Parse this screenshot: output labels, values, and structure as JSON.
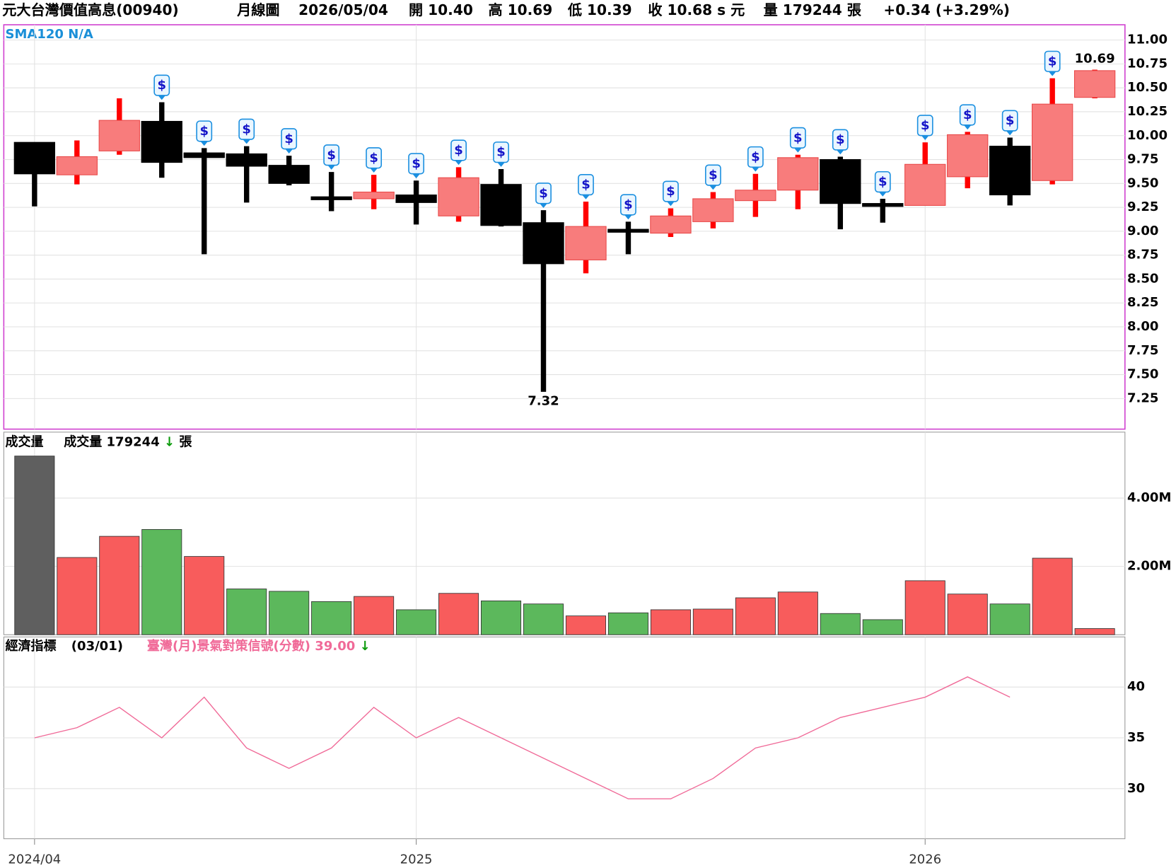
{
  "header": {
    "name": "元大台灣價值高息(00940)",
    "period": "月線圖",
    "date": "2026/05/04",
    "open": "開 10.40",
    "high": "高 10.69",
    "low": "低 10.39",
    "close": "收 10.68 s 元",
    "volume": "量 179244 張",
    "change": "+0.34 (+3.29%)"
  },
  "chart_data": [
    {
      "type": "candlestick",
      "indicator_label": "SMA120 N/A",
      "categories": [
        "2024/04",
        null,
        null,
        null,
        null,
        null,
        null,
        null,
        null,
        "2025",
        null,
        null,
        null,
        null,
        null,
        null,
        null,
        null,
        null,
        null,
        null,
        "2026",
        null,
        null,
        null,
        null
      ],
      "open": [
        9.93,
        9.59,
        9.84,
        10.15,
        9.82,
        9.81,
        9.69,
        9.35,
        9.34,
        9.38,
        9.16,
        9.49,
        9.09,
        8.7,
        9.01,
        8.98,
        9.1,
        9.32,
        9.43,
        9.75,
        9.28,
        9.27,
        9.57,
        9.89,
        9.53,
        10.4
      ],
      "high": [
        9.93,
        9.95,
        10.39,
        10.35,
        9.87,
        9.89,
        9.79,
        9.62,
        9.59,
        9.53,
        9.67,
        9.65,
        9.22,
        9.31,
        9.1,
        9.24,
        9.41,
        9.6,
        9.8,
        9.78,
        9.34,
        9.93,
        10.04,
        9.98,
        10.6,
        10.69
      ],
      "low": [
        9.26,
        9.49,
        9.8,
        9.56,
        8.76,
        9.3,
        9.48,
        9.21,
        9.23,
        9.07,
        9.1,
        9.05,
        7.32,
        8.56,
        8.76,
        8.94,
        9.03,
        9.15,
        9.23,
        9.02,
        9.09,
        9.27,
        9.45,
        9.27,
        9.49,
        10.39
      ],
      "close": [
        9.6,
        9.78,
        10.16,
        9.72,
        9.77,
        9.68,
        9.5,
        9.34,
        9.41,
        9.3,
        9.56,
        9.06,
        8.66,
        9.05,
        9.0,
        9.16,
        9.34,
        9.43,
        9.77,
        9.29,
        9.27,
        9.7,
        10.01,
        9.38,
        10.33,
        10.68
      ],
      "dividend": [
        false,
        false,
        false,
        true,
        true,
        true,
        true,
        true,
        true,
        true,
        true,
        true,
        true,
        true,
        true,
        true,
        true,
        true,
        true,
        true,
        true,
        true,
        true,
        true,
        true,
        false
      ],
      "dividend_icon": "$",
      "up_color": "#f87c7c",
      "up_wick_color": "#ff0000",
      "down_color": "#000000",
      "ylim": [
        6.93,
        11.16
      ],
      "yticks": [
        {
          "value": 7.25,
          "label": "7.25"
        },
        {
          "value": 7.5,
          "label": "7.50"
        },
        {
          "value": 7.75,
          "label": "7.75"
        },
        {
          "value": 8,
          "label": "8.00"
        },
        {
          "value": 8.25,
          "label": "8.25"
        },
        {
          "value": 8.5,
          "label": "8.50"
        },
        {
          "value": 8.75,
          "label": "8.75"
        },
        {
          "value": 9,
          "label": "9.00"
        },
        {
          "value": 9.25,
          "label": "9.25"
        },
        {
          "value": 9.5,
          "label": "9.50"
        },
        {
          "value": 9.75,
          "label": "9.75"
        },
        {
          "value": 10,
          "label": "10.00"
        },
        {
          "value": 10.25,
          "label": "10.25"
        },
        {
          "value": 10.5,
          "label": "10.50"
        },
        {
          "value": 10.75,
          "label": "10.75"
        },
        {
          "value": 11,
          "label": "11.00"
        }
      ],
      "grid": true
    },
    {
      "type": "bar",
      "title": "成交量",
      "legend_label": "成交量 179244",
      "trend_arrow": "↓",
      "unit": "張",
      "values": [
        5230000,
        2260000,
        2880000,
        3080000,
        2290000,
        1340000,
        1270000,
        970000,
        1120000,
        730000,
        1210000,
        990000,
        900000,
        550000,
        640000,
        730000,
        750000,
        1080000,
        1250000,
        620000,
        440000,
        1580000,
        1190000,
        900000,
        2240000,
        179244
      ],
      "colors": [
        "#5f5f5f",
        "#f85c5c",
        "#f85c5c",
        "#5cb85c",
        "#f85c5c",
        "#5cb85c",
        "#5cb85c",
        "#5cb85c",
        "#f85c5c",
        "#5cb85c",
        "#f85c5c",
        "#5cb85c",
        "#5cb85c",
        "#f85c5c",
        "#5cb85c",
        "#f85c5c",
        "#f85c5c",
        "#f85c5c",
        "#f85c5c",
        "#5cb85c",
        "#5cb85c",
        "#f85c5c",
        "#f85c5c",
        "#5cb85c",
        "#f85c5c",
        "#f85c5c"
      ],
      "ylim": [
        0,
        5930000
      ],
      "yticks": [
        {
          "value": 2000000,
          "label": "2.00M"
        },
        {
          "value": 4000000,
          "label": "4.00M"
        }
      ],
      "grid": true
    },
    {
      "type": "line",
      "title": "經濟指標",
      "subtitle": "(03/01)",
      "trend_arrow": "↓",
      "series": [
        {
          "name": "臺灣(月)景氣對策信號(分數)",
          "color": "#f06a98",
          "values": [
            35,
            36,
            38,
            35,
            39,
            34,
            32,
            34,
            38,
            35,
            37,
            35,
            33,
            31,
            29,
            29,
            31,
            34,
            35,
            37,
            38,
            39,
            41,
            39,
            null,
            null
          ],
          "value_labels": [
            null,
            null,
            null,
            null,
            null,
            null,
            null,
            null,
            null,
            null,
            null,
            null,
            null,
            null,
            null,
            null,
            null,
            null,
            null,
            null,
            null,
            null,
            null,
            "39.00",
            null,
            null
          ]
        }
      ],
      "ylim": [
        25.07,
        44.93
      ],
      "yticks": [
        30,
        35,
        40
      ],
      "grid": true
    }
  ]
}
